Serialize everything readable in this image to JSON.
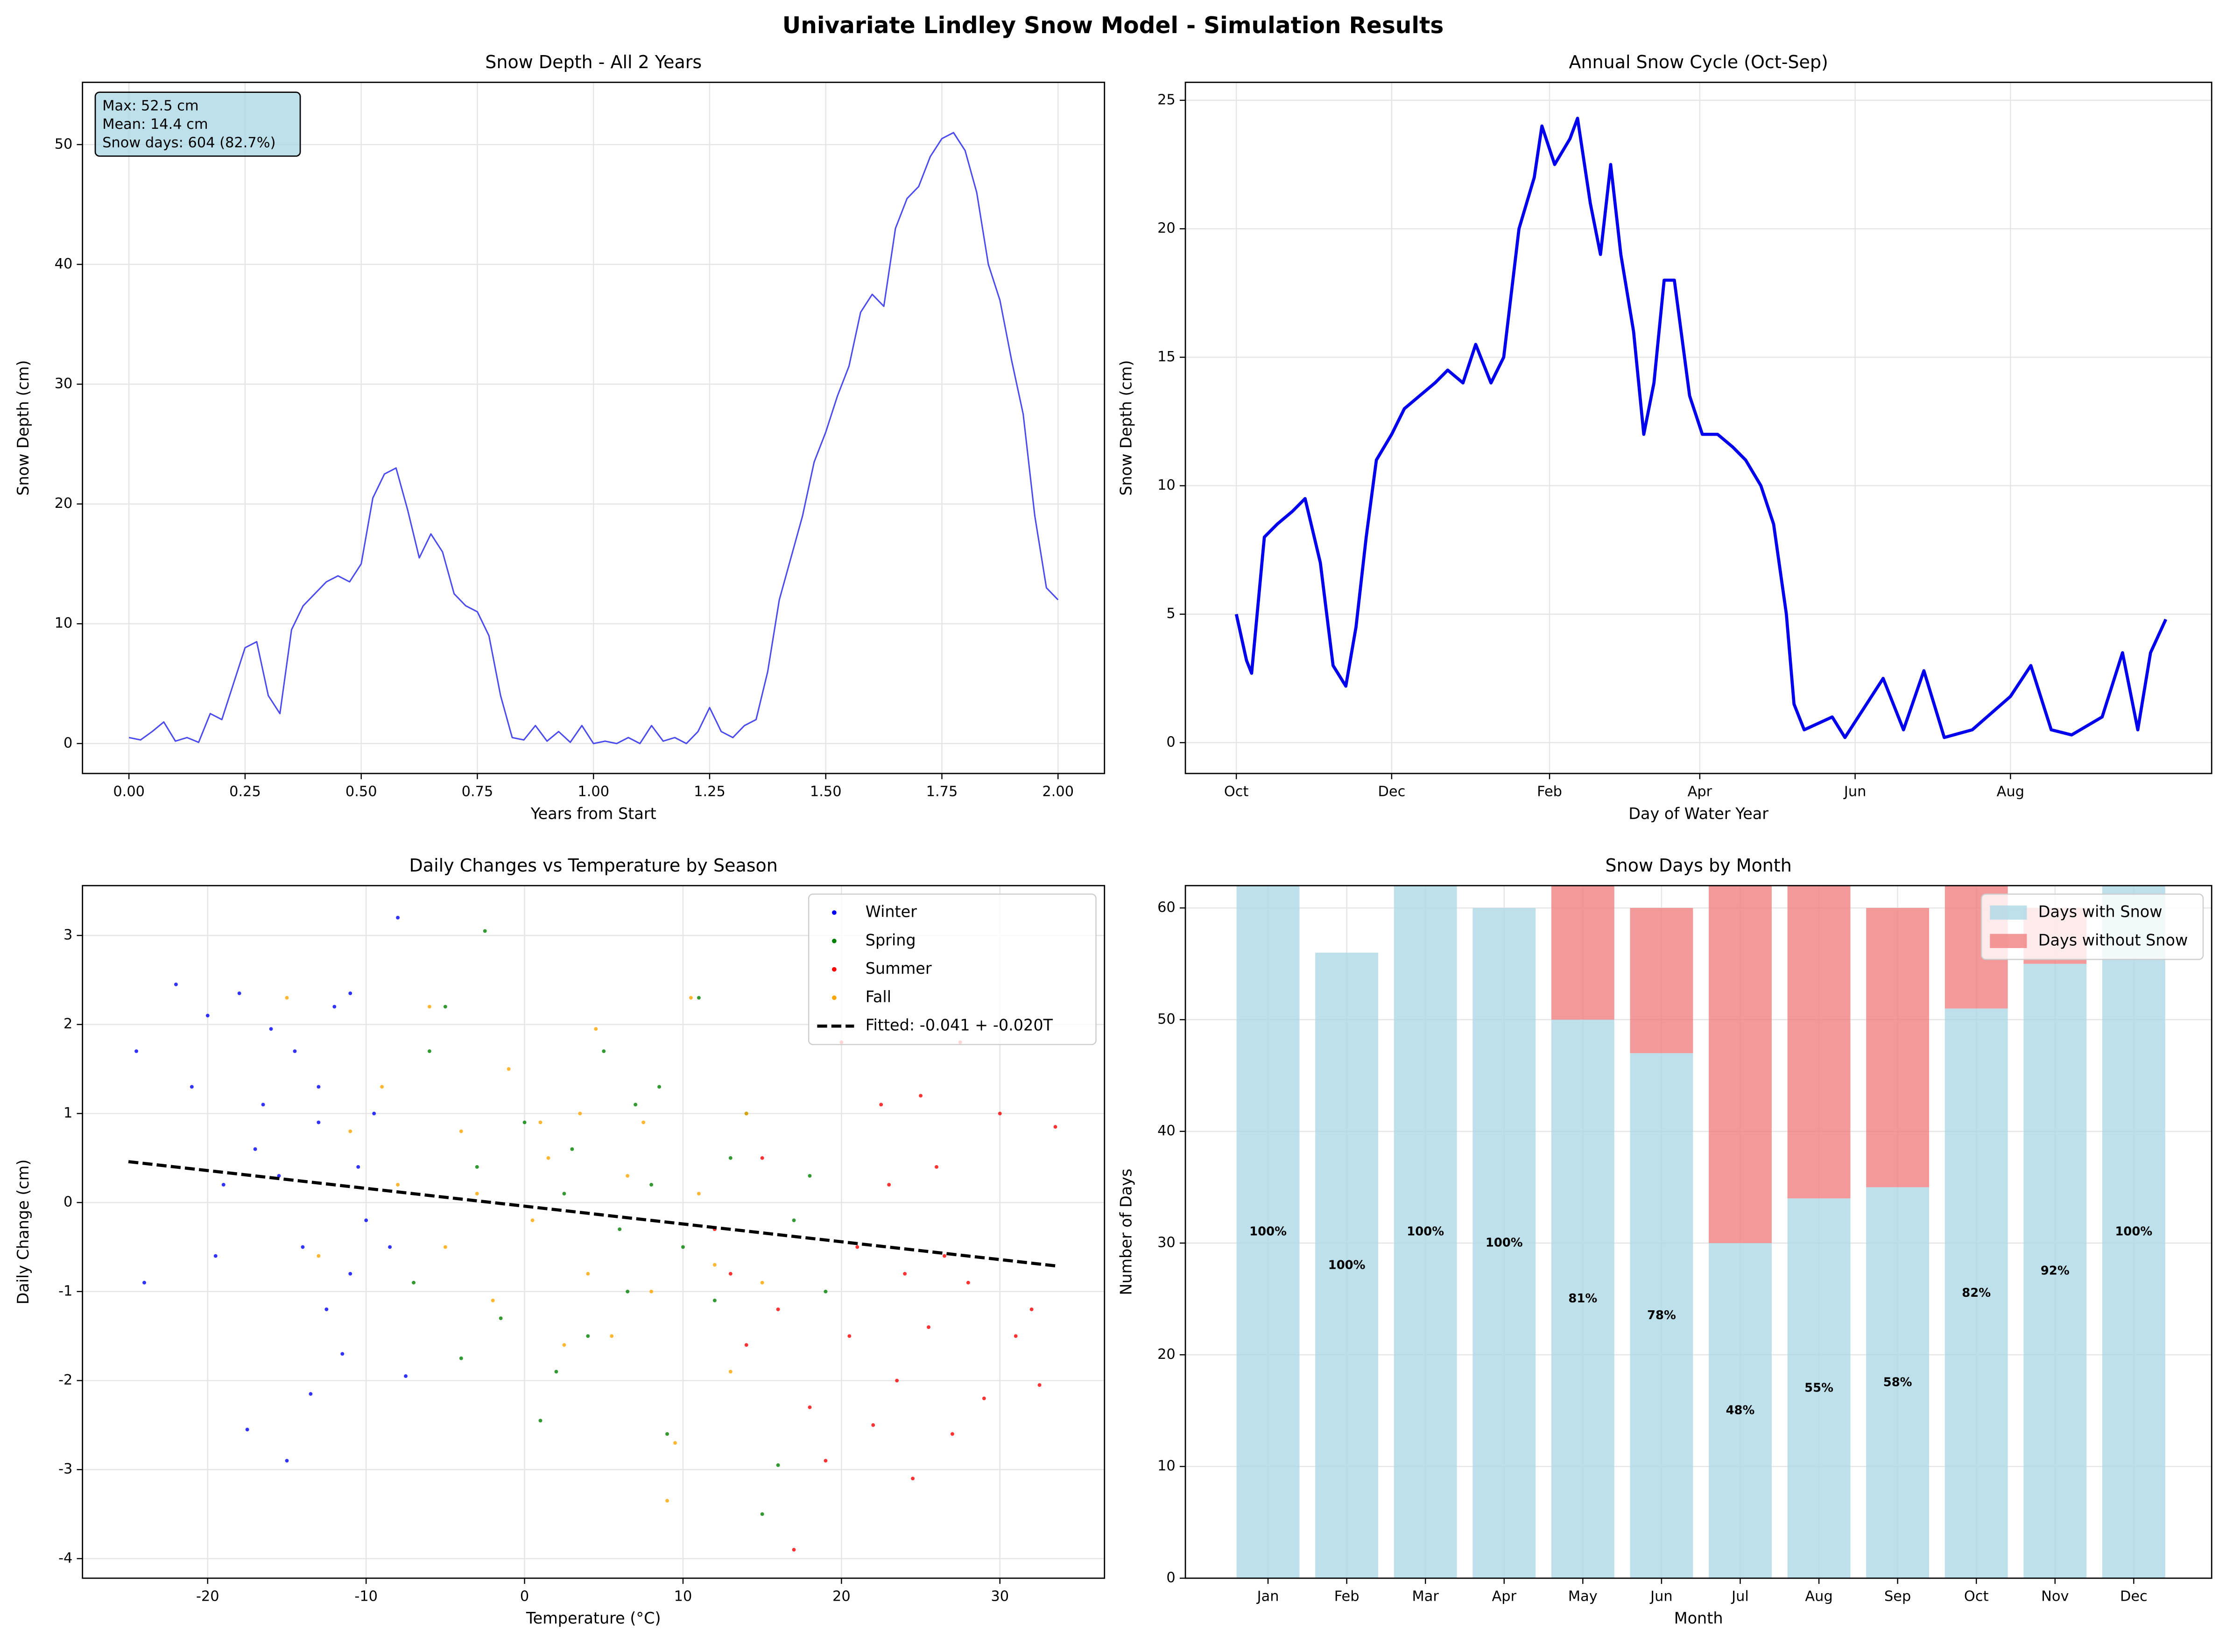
{
  "title": "Univariate Lindley Snow Model - Simulation Results",
  "chart_data": [
    {
      "type": "line",
      "title": "Snow Depth - All 2 Years",
      "x_label": "Years from Start",
      "y_label": "Snow Depth (cm)",
      "xlim": [
        -0.1,
        2.1
      ],
      "ylim": [
        -2.5,
        55.2
      ],
      "xticks": [
        {
          "value": 0,
          "label": "0.00"
        },
        {
          "value": 0.25,
          "label": "0.25"
        },
        {
          "value": 0.5,
          "label": "0.50"
        },
        {
          "value": 0.75,
          "label": "0.75"
        },
        {
          "value": 1,
          "label": "1.00"
        },
        {
          "value": 1.25,
          "label": "1.25"
        },
        {
          "value": 1.5,
          "label": "1.50"
        },
        {
          "value": 1.75,
          "label": "1.75"
        },
        {
          "value": 2,
          "label": "2.00"
        }
      ],
      "yticks": [
        0,
        10,
        20,
        30,
        40,
        50
      ],
      "grid": true,
      "line_width": 1,
      "annotation": [
        "Max: 52.5 cm",
        "Mean: 14.4 cm",
        "Snow days: 604 (82.7%)"
      ],
      "series": [
        {
          "color": "#4a4aee",
          "x": [
            0,
            0.025,
            0.05,
            0.075,
            0.1,
            0.125,
            0.15,
            0.175,
            0.2,
            0.225,
            0.25,
            0.275,
            0.3,
            0.325,
            0.35,
            0.375,
            0.4,
            0.425,
            0.45,
            0.475,
            0.5,
            0.525,
            0.55,
            0.575,
            0.6,
            0.625,
            0.65,
            0.675,
            0.7,
            0.725,
            0.75,
            0.775,
            0.8,
            0.825,
            0.85,
            0.875,
            0.9,
            0.925,
            0.95,
            0.975,
            1,
            1.025,
            1.05,
            1.075,
            1.1,
            1.125,
            1.15,
            1.175,
            1.2,
            1.225,
            1.25,
            1.275,
            1.3,
            1.325,
            1.35,
            1.375,
            1.4,
            1.425,
            1.45,
            1.475,
            1.5,
            1.525,
            1.55,
            1.575,
            1.6,
            1.625,
            1.65,
            1.675,
            1.7,
            1.725,
            1.75,
            1.775,
            1.8,
            1.825,
            1.85,
            1.875,
            1.9,
            1.925,
            1.95,
            1.975,
            2
          ],
          "values": [
            0.5,
            0.3,
            1.0,
            1.8,
            0.2,
            0.5,
            0.1,
            2.5,
            2.0,
            5.0,
            8.0,
            8.5,
            4.0,
            2.5,
            9.5,
            11.5,
            12.5,
            13.5,
            14.0,
            13.5,
            15.0,
            20.5,
            22.5,
            23.0,
            19.5,
            15.5,
            17.5,
            16.0,
            12.5,
            11.5,
            11.0,
            9.0,
            4.0,
            0.5,
            0.3,
            1.5,
            0.2,
            1.0,
            0.1,
            1.5,
            0.0,
            0.2,
            0.0,
            0.5,
            0.0,
            1.5,
            0.2,
            0.5,
            0.0,
            1.0,
            3.0,
            1.0,
            0.5,
            1.5,
            2.0,
            6.0,
            12.0,
            15.5,
            19.0,
            23.5,
            26.0,
            29.0,
            31.5,
            36.0,
            37.5,
            36.5,
            43.0,
            45.5,
            46.5,
            49.0,
            50.5,
            51.0,
            49.5,
            46.0,
            40.0,
            37.0,
            32.0,
            27.5,
            19.0,
            13.0,
            12.0
          ]
        }
      ]
    },
    {
      "type": "line",
      "title": "Annual Snow Cycle (Oct-Sep)",
      "x_label": "Day of Water Year",
      "y_label": "Snow Depth (cm)",
      "xlim": [
        -20,
        383
      ],
      "ylim": [
        -1.2,
        25.7
      ],
      "xticks": [
        {
          "value": 0,
          "label": "Oct"
        },
        {
          "value": 61,
          "label": "Dec"
        },
        {
          "value": 123,
          "label": "Feb"
        },
        {
          "value": 182,
          "label": "Apr"
        },
        {
          "value": 243,
          "label": "Jun"
        },
        {
          "value": 304,
          "label": "Aug"
        }
      ],
      "yticks": [
        0,
        5,
        10,
        15,
        20,
        25
      ],
      "grid": true,
      "line_width": 2.2,
      "series": [
        {
          "color": "#0000ee",
          "x": [
            0,
            4,
            6,
            11,
            16,
            22,
            27,
            33,
            38,
            43,
            47,
            51,
            55,
            61,
            66,
            72,
            78,
            83,
            89,
            94,
            100,
            105,
            111,
            117,
            120,
            125,
            131,
            134,
            139,
            143,
            147,
            151,
            156,
            160,
            164,
            168,
            172,
            178,
            183,
            189,
            195,
            200,
            206,
            211,
            216,
            219,
            223,
            234,
            239,
            254,
            262,
            270,
            278,
            289,
            304,
            312,
            320,
            328,
            340,
            348,
            354,
            359,
            365
          ],
          "values": [
            5.0,
            3.2,
            2.7,
            8.0,
            8.5,
            9.0,
            9.5,
            7.0,
            3.0,
            2.2,
            4.5,
            8.0,
            11.0,
            12.0,
            13.0,
            13.5,
            14.0,
            14.5,
            14.0,
            15.5,
            14.0,
            15.0,
            20.0,
            22.0,
            24.0,
            22.5,
            23.5,
            24.3,
            21.0,
            19.0,
            22.5,
            19.0,
            16.0,
            12.0,
            14.0,
            18.0,
            18.0,
            13.5,
            12.0,
            12.0,
            11.5,
            11.0,
            10.0,
            8.5,
            5.0,
            1.5,
            0.5,
            1.0,
            0.2,
            2.5,
            0.5,
            2.8,
            0.2,
            0.5,
            1.8,
            3.0,
            0.5,
            0.3,
            1.0,
            3.5,
            0.5,
            3.5,
            4.8
          ]
        }
      ]
    },
    {
      "type": "scatter",
      "title": "Daily Changes vs Temperature by Season",
      "x_label": "Temperature (°C)",
      "y_label": "Daily Change (cm)",
      "xlim": [
        -27.9,
        36.6
      ],
      "ylim": [
        -4.22,
        3.56
      ],
      "xticks": [
        -20,
        -10,
        0,
        10,
        20,
        30
      ],
      "yticks": [
        -4,
        -3,
        -2,
        -1,
        0,
        1,
        2,
        3
      ],
      "grid": true,
      "legend": "upper right",
      "series": [
        {
          "name": "Winter",
          "color": "#0000ff",
          "x": [
            -24.5,
            -24,
            -22,
            -21,
            -20,
            -19.5,
            -18,
            -17.5,
            -16.5,
            -16,
            -15.5,
            -15,
            -14.5,
            -14,
            -13.5,
            -13,
            -12.5,
            -12,
            -11.5,
            -11,
            -10.5,
            -10,
            -9.5,
            -8,
            -7.5,
            -8.5,
            -17,
            -19,
            -13,
            -11
          ],
          "values": [
            1.7,
            -0.9,
            2.45,
            1.3,
            2.1,
            -0.6,
            2.35,
            -2.55,
            1.1,
            1.95,
            0.3,
            -2.9,
            1.7,
            -0.5,
            -2.15,
            0.9,
            -1.2,
            2.2,
            -1.7,
            2.35,
            0.4,
            -0.2,
            1.0,
            3.2,
            -1.95,
            -0.5,
            0.6,
            0.2,
            1.3,
            -0.8
          ]
        },
        {
          "name": "Spring",
          "color": "#008000",
          "x": [
            -7,
            -6,
            -5,
            -4,
            -3,
            -2.5,
            -1.5,
            0,
            1,
            2,
            3,
            4,
            5,
            6,
            7,
            8,
            9,
            10,
            11,
            12,
            13,
            14,
            15,
            16,
            17,
            18,
            19,
            8.5,
            2.5,
            6.5
          ],
          "values": [
            -0.9,
            1.7,
            2.2,
            -1.75,
            0.4,
            3.05,
            -1.3,
            0.9,
            -2.45,
            -1.9,
            0.6,
            -1.5,
            1.7,
            -0.3,
            1.1,
            0.2,
            -2.6,
            -0.5,
            2.3,
            -1.1,
            0.5,
            1.0,
            -3.5,
            -2.95,
            -0.2,
            0.3,
            -1.0,
            1.3,
            0.1,
            -1.0
          ]
        },
        {
          "name": "Summer",
          "color": "#ff0000",
          "x": [
            12,
            13,
            14,
            15,
            16,
            17,
            18,
            19,
            20,
            21,
            22,
            22.5,
            23,
            23.5,
            24,
            24.5,
            25,
            25.5,
            26,
            27,
            27.5,
            28,
            29,
            30,
            31,
            32,
            32.5,
            33.5,
            20.5,
            26.5
          ],
          "values": [
            -0.3,
            -0.8,
            -1.6,
            0.5,
            -1.2,
            -3.9,
            -2.3,
            -2.9,
            1.8,
            -0.5,
            -2.5,
            1.1,
            0.2,
            -2.0,
            -0.8,
            -3.1,
            1.2,
            -1.4,
            0.4,
            -2.6,
            1.8,
            -0.9,
            -2.2,
            1.0,
            -1.5,
            -1.2,
            -2.05,
            0.85,
            -1.5,
            -0.6
          ]
        },
        {
          "name": "Fall",
          "color": "#ffa500",
          "x": [
            -15,
            -13,
            -11,
            -9,
            -8,
            -6,
            -5,
            -4,
            -2,
            -1,
            0.5,
            1.5,
            2.5,
            3.5,
            4.5,
            5.5,
            6.5,
            7.5,
            9,
            9.5,
            10.5,
            11,
            12,
            13,
            14,
            15,
            4,
            -3,
            1,
            8
          ],
          "values": [
            2.3,
            -0.6,
            0.8,
            1.3,
            0.2,
            2.2,
            -0.5,
            0.8,
            -1.1,
            1.5,
            -0.2,
            0.5,
            -1.6,
            1.0,
            1.95,
            -1.5,
            0.3,
            0.9,
            -3.35,
            -2.7,
            2.3,
            0.1,
            -0.7,
            -1.9,
            1.0,
            -0.9,
            -0.8,
            0.1,
            0.9,
            -1.0
          ]
        }
      ],
      "fit": {
        "name": "Fitted: -0.041 + -0.020T",
        "intercept": -0.041,
        "slope": -0.02,
        "x": [
          -25,
          33.5
        ],
        "color": "#000000"
      }
    },
    {
      "type": "bar",
      "stacked": true,
      "title": "Snow Days by Month",
      "x_label": "Month",
      "y_label": "Number of Days",
      "ylim": [
        0,
        62
      ],
      "yticks": [
        0,
        10,
        20,
        30,
        40,
        50,
        60
      ],
      "grid": true,
      "legend": "upper right",
      "categories": [
        "Jan",
        "Feb",
        "Mar",
        "Apr",
        "May",
        "Jun",
        "Jul",
        "Aug",
        "Sep",
        "Oct",
        "Nov",
        "Dec"
      ],
      "series": [
        {
          "name": "Days with Snow",
          "color": "#add8e6",
          "values": [
            62,
            56,
            62,
            60,
            50,
            47,
            30,
            34,
            35,
            51,
            55,
            62
          ]
        },
        {
          "name": "Days without Snow",
          "color": "#f08080",
          "values": [
            0,
            0,
            0,
            0,
            12,
            13,
            32,
            28,
            25,
            11,
            5,
            0
          ]
        }
      ],
      "percent_labels": [
        "100%",
        "100%",
        "100%",
        "100%",
        "81%",
        "78%",
        "48%",
        "55%",
        "58%",
        "82%",
        "92%",
        "100%"
      ]
    }
  ]
}
